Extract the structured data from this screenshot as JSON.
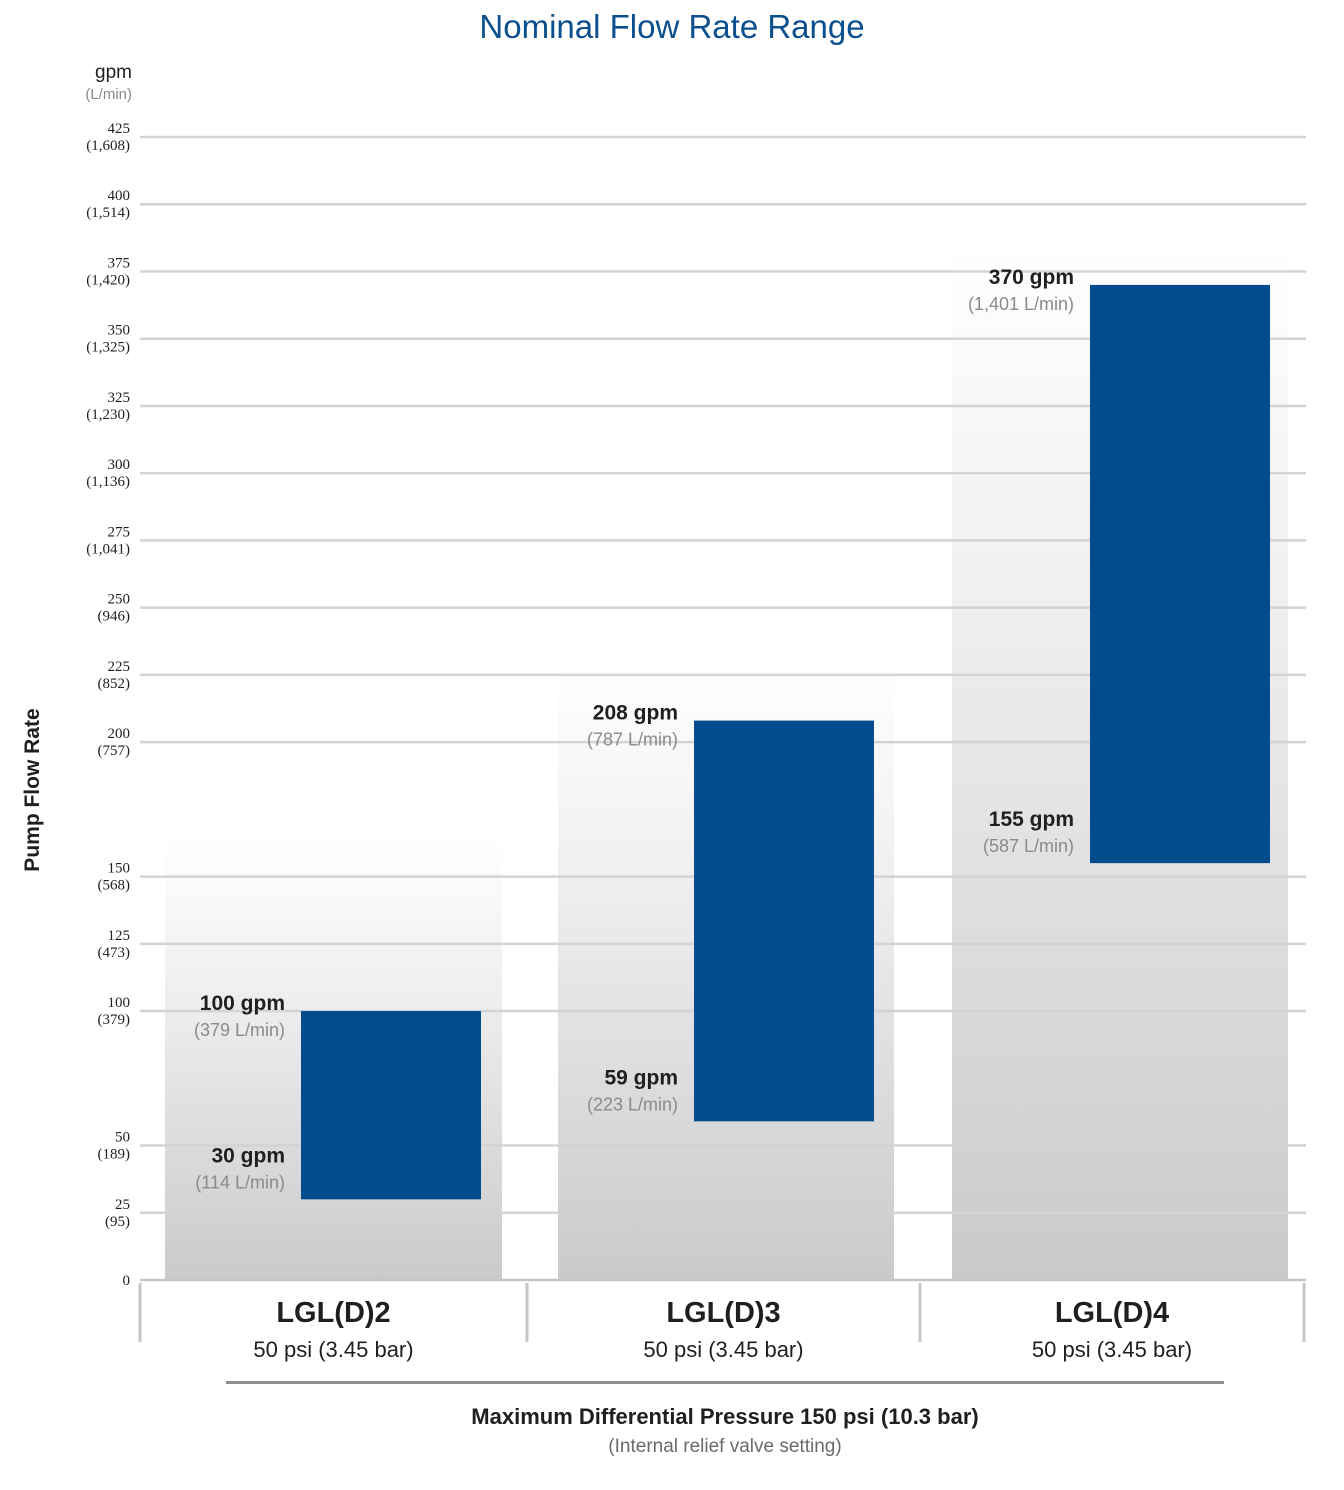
{
  "title": "Nominal Flow Rate Range",
  "units": {
    "primary": "gpm",
    "secondary": "(L/min)"
  },
  "colors": {
    "bar": "#014c8d",
    "title": "#0b4f8f",
    "grid": "#d2d3d5",
    "secondary_text": "#8a8a8a"
  },
  "chart_data": {
    "type": "bar",
    "title": "Nominal Flow Rate Range",
    "ylabel": "Pump Flow Rate",
    "xlabel": "Maximum Differential Pressure 150 psi (10.3 bar)",
    "xlabel_note": "(Internal relief valve setting)",
    "ylim": [
      0,
      425
    ],
    "yticks": [
      {
        "value": 0,
        "label": "0",
        "sub": ""
      },
      {
        "value": 25,
        "label": "25",
        "sub": "(95)"
      },
      {
        "value": 50,
        "label": "50",
        "sub": "(189)"
      },
      {
        "value": 100,
        "label": "100",
        "sub": "(379)"
      },
      {
        "value": 125,
        "label": "125",
        "sub": "(473)"
      },
      {
        "value": 150,
        "label": "150",
        "sub": "(568)"
      },
      {
        "value": 200,
        "label": "200",
        "sub": "(757)"
      },
      {
        "value": 225,
        "label": "225",
        "sub": "(852)"
      },
      {
        "value": 250,
        "label": "250",
        "sub": "(946)"
      },
      {
        "value": 275,
        "label": "275",
        "sub": "(1,041)"
      },
      {
        "value": 300,
        "label": "300",
        "sub": "(1,136)"
      },
      {
        "value": 325,
        "label": "325",
        "sub": "(1,230)"
      },
      {
        "value": 350,
        "label": "350",
        "sub": "(1,325)"
      },
      {
        "value": 375,
        "label": "375",
        "sub": "(1,420)"
      },
      {
        "value": 400,
        "label": "400",
        "sub": "(1,514)"
      },
      {
        "value": 425,
        "label": "425",
        "sub": "(1,608)"
      }
    ],
    "categories": [
      {
        "name": "LGL(D)2",
        "pressure": "50 psi (3.45 bar)",
        "background_top": 165,
        "min": 30,
        "max": 100,
        "min_label": "30 gpm",
        "min_sub": "(114 L/min)",
        "max_label": "100 gpm",
        "max_sub": "(379 L/min)"
      },
      {
        "name": "LGL(D)3",
        "pressure": "50 psi (3.45 bar)",
        "background_top": 230,
        "min": 59,
        "max": 208,
        "min_label": "59 gpm",
        "min_sub": "(223 L/min)",
        "max_label": "208 gpm",
        "max_sub": "(787 L/min)"
      },
      {
        "name": "LGL(D)4",
        "pressure": "50 psi (3.45 bar)",
        "background_top": 385,
        "min": 155,
        "max": 370,
        "min_label": "155 gpm",
        "min_sub": "(587 L/min)",
        "max_label": "370 gpm",
        "max_sub": "(1,401 L/min)"
      }
    ]
  }
}
